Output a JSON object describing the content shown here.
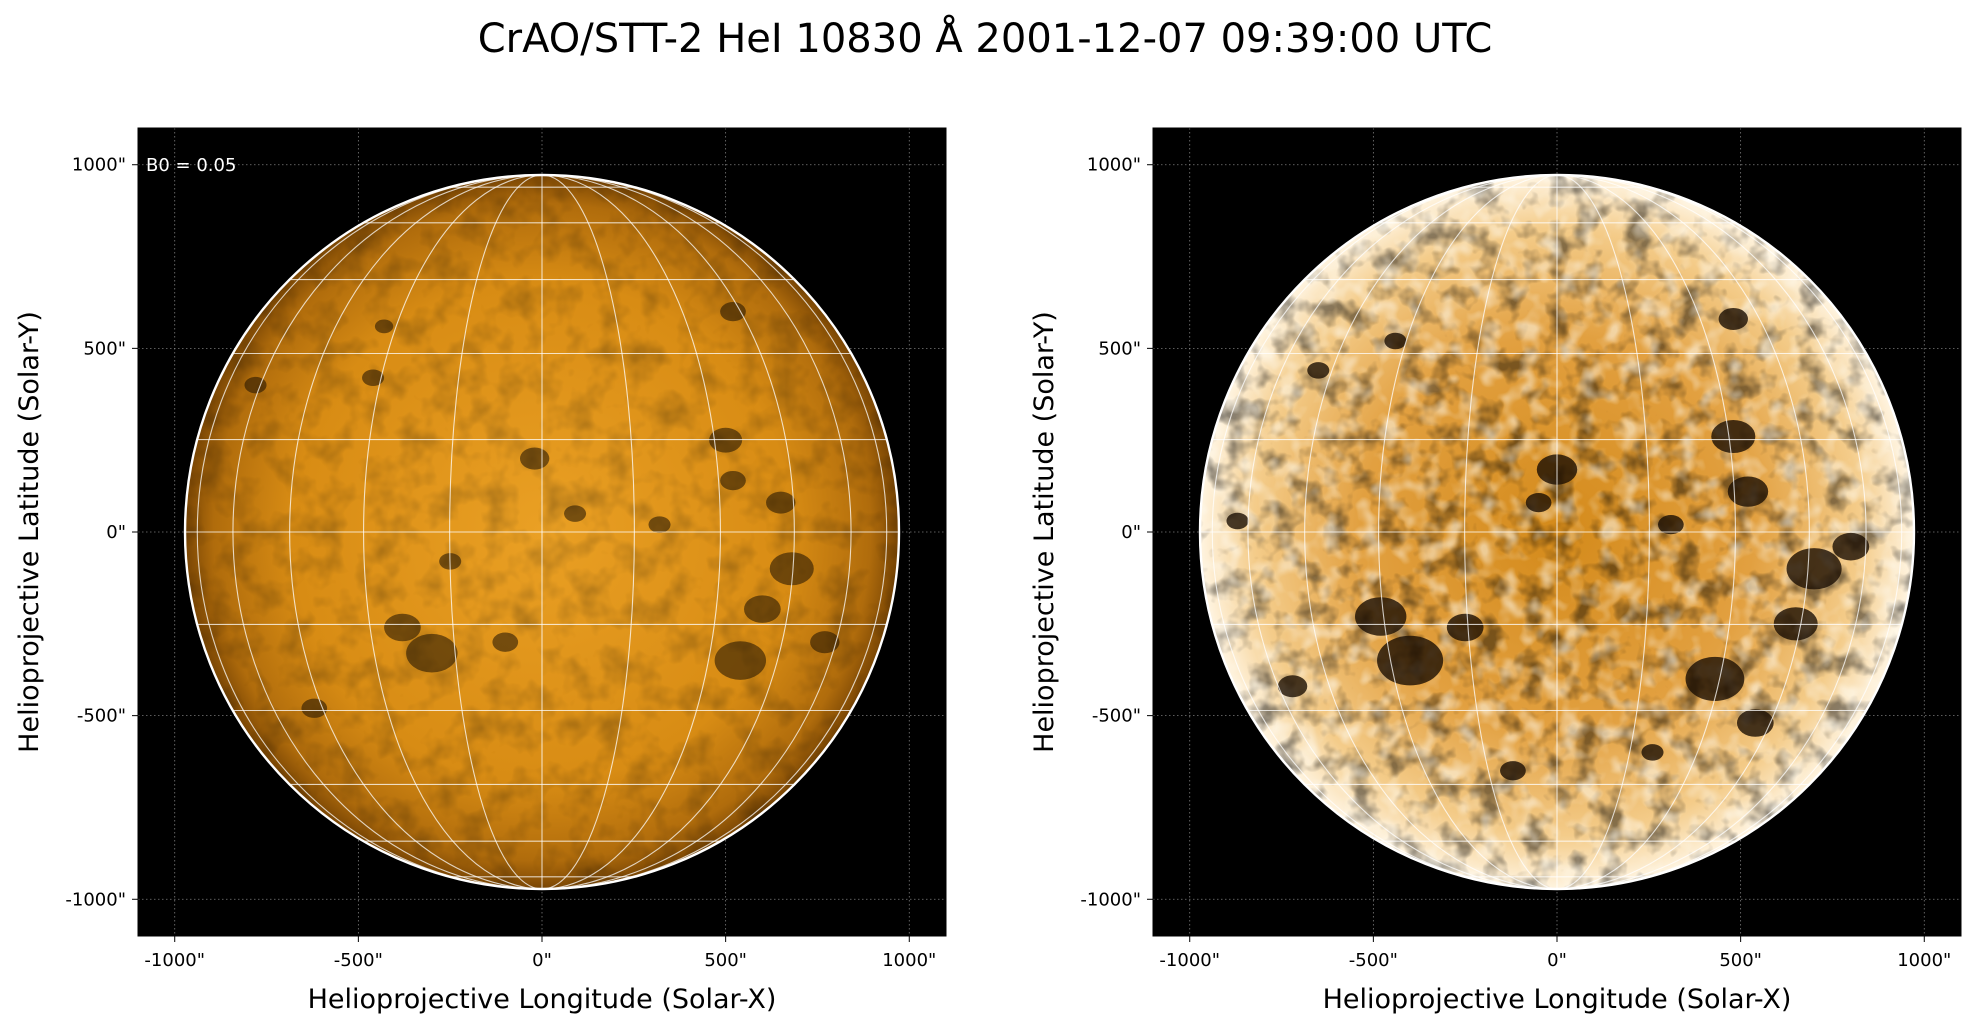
{
  "figure": {
    "title": "CrAO/STT-2 HeI 10830 Å 2001-12-07 09:39:00 UTC",
    "background": "#ffffff"
  },
  "panels": [
    {
      "id": "left",
      "annotation": "B0 = 0.05",
      "xlabel": "Helioprojective Longitude (Solar-X)",
      "ylabel": "Helioprojective Latitude (Solar-Y)",
      "x_ticks": [
        "-1000\"",
        "-500\"",
        "0\"",
        "500\"",
        "1000\""
      ],
      "y_ticks": [
        "1000\"",
        "500\"",
        "0\"",
        "-500\"",
        "-1000\""
      ],
      "tick_values": [
        -1000,
        -500,
        0,
        500,
        1000
      ],
      "axis_range_arcsec": [
        -1100,
        1100
      ],
      "solar_radius_arcsec": 972,
      "colormap": "sdoaia304-like",
      "disk_colors": {
        "center": "#e89a18",
        "mid": "#d98a12",
        "limb": "#8a5206"
      },
      "limb_color": "#ffffff",
      "heliographic_grid": true,
      "contrast": "normal"
    },
    {
      "id": "right",
      "annotation": "",
      "xlabel": "Helioprojective Longitude (Solar-X)",
      "ylabel": "Helioprojective Latitude (Solar-Y)",
      "x_ticks": [
        "-1000\"",
        "-500\"",
        "0\"",
        "500\"",
        "1000\""
      ],
      "y_ticks": [
        "1000\"",
        "500\"",
        "0\"",
        "-500\"",
        "-1000\""
      ],
      "tick_values": [
        -1000,
        -500,
        0,
        500,
        1000
      ],
      "axis_range_arcsec": [
        -1100,
        1100
      ],
      "solar_radius_arcsec": 972,
      "colormap": "sdoaia304-like",
      "disk_colors": {
        "center": "#d8901c",
        "mid": "#e6a84a",
        "limb": "#fff1d8"
      },
      "limb_color": "#ffffff",
      "heliographic_grid": true,
      "contrast": "high"
    }
  ]
}
